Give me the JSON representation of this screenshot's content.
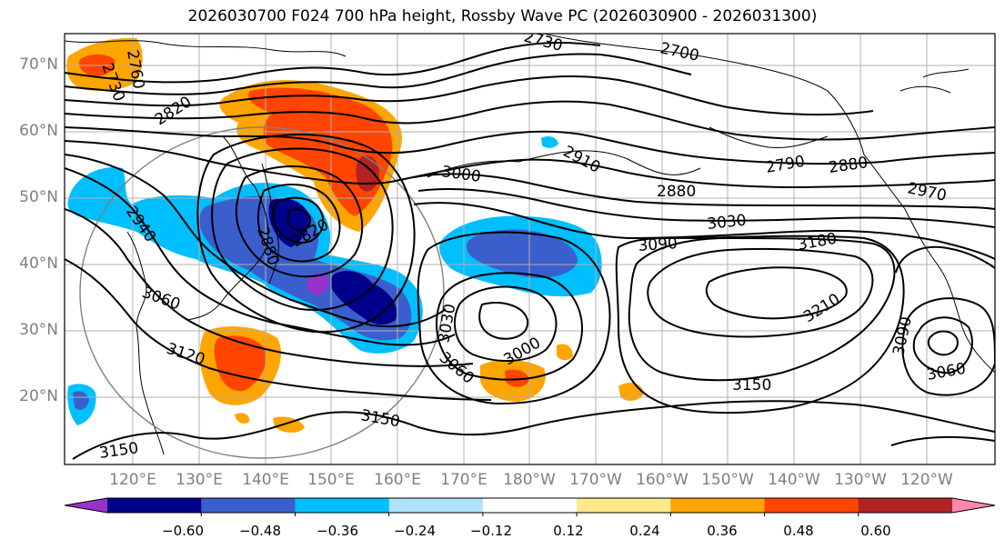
{
  "title": "2026030700 F024 700 hPa height, Rossby Wave PC (2026030900 - 2026031300)",
  "axes": {
    "lat_labels": [
      "70°N",
      "60°N",
      "50°N",
      "40°N",
      "30°N",
      "20°N"
    ],
    "lon_labels": [
      "120°E",
      "130°E",
      "140°E",
      "150°E",
      "160°E",
      "170°E",
      "180°W",
      "170°W",
      "160°W",
      "150°W",
      "140°W",
      "130°W",
      "120°W"
    ]
  },
  "contour_labels": [
    "2700",
    "2730",
    "2730",
    "2760",
    "2820",
    "2910",
    "3000",
    "2790",
    "2880",
    "2880",
    "2970",
    "3030",
    "3090",
    "3180",
    "3210",
    "2940",
    "2880",
    "2820",
    "3060",
    "3120",
    "3030",
    "3060",
    "3000",
    "3150",
    "3150",
    "3090",
    "3060",
    "3150"
  ],
  "colorbar": {
    "ticks": [
      "−0.60",
      "−0.48",
      "−0.36",
      "−0.24",
      "−0.12",
      "0.12",
      "0.24",
      "0.36",
      "0.48",
      "0.60"
    ],
    "colors": [
      "#9932cc",
      "#00008b",
      "#3a5fcd",
      "#00bfff",
      "#b0e2ff",
      "#ffffff",
      "#ffe98a",
      "#ffa500",
      "#ff4500",
      "#b22222",
      "#ff88aa"
    ]
  },
  "colors": {
    "pos_high": "#ff4500",
    "pos_mid": "#ffa500",
    "pos_low": "#ffe98a",
    "neg_low": "#00bfff",
    "neg_mid": "#3a5fcd",
    "neg_high": "#00008b",
    "neg_max": "#9932cc"
  }
}
